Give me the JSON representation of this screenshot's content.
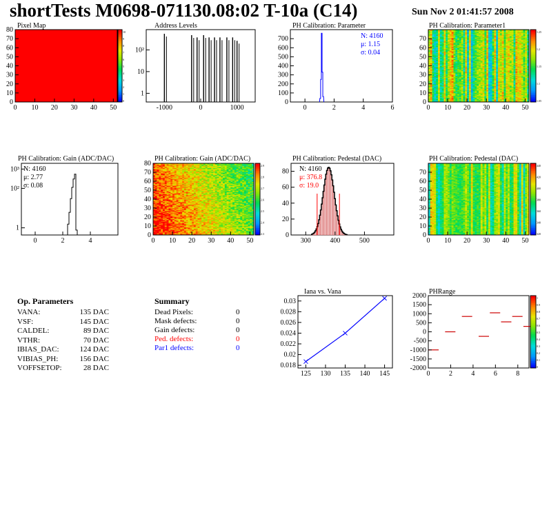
{
  "header": {
    "title": "shortTests M0698-071130.08:02 T-10a (C14)",
    "datetime": "Sun Nov  2 01:41:57 2008"
  },
  "panels": {
    "pixel_map": {
      "title": "Pixel Map",
      "xticks": [
        "0",
        "10",
        "20",
        "30",
        "40",
        "50"
      ],
      "yticks": [
        "0",
        "10",
        "20",
        "30",
        "40",
        "50",
        "60",
        "70",
        "80"
      ],
      "zticks": [
        "0",
        "1",
        "2",
        "3",
        "4",
        "5",
        "6",
        "7",
        "8",
        "9",
        "10"
      ]
    },
    "address_levels": {
      "title": "Address Levels",
      "xticks": [
        "-1000",
        "0",
        "1000"
      ],
      "yticks": [
        "1",
        "10",
        "10²"
      ]
    },
    "ph_param": {
      "title": "PH Calibration: Parameter",
      "xticks": [
        "0",
        "2",
        "4",
        "6"
      ],
      "yticks": [
        "0",
        "100",
        "200",
        "300",
        "400",
        "500",
        "600",
        "700"
      ],
      "stats": {
        "n": "N: 4160",
        "mu": "μ: 1.15",
        "sigma": "σ: 0.04"
      }
    },
    "ph_param1": {
      "title": "PH Calibration: Parameter1",
      "xticks": [
        "0",
        "10",
        "20",
        "30",
        "40",
        "50"
      ],
      "yticks": [
        "0",
        "10",
        "20",
        "30",
        "40",
        "50",
        "60",
        "70"
      ],
      "zticks": [
        "1.05",
        "1.1",
        "1.15",
        "1.2",
        "1.25"
      ]
    },
    "gain_hist": {
      "title": "PH Calibration: Gain (ADC/DAC)",
      "xticks": [
        "0",
        "2",
        "4"
      ],
      "yticks": [
        "1",
        "10²",
        "10³"
      ],
      "stats": {
        "n": "N: 4160",
        "mu": "μ: 2.77",
        "sigma": "σ: 0.08"
      }
    },
    "gain_map": {
      "title": "PH Calibration: Gain (ADC/DAC)",
      "xticks": [
        "0",
        "10",
        "20",
        "30",
        "40",
        "50"
      ],
      "yticks": [
        "0",
        "10",
        "20",
        "30",
        "40",
        "50",
        "60",
        "70",
        "80"
      ],
      "zticks": [
        "2.3",
        "2.4",
        "2.5",
        "2.6",
        "2.7",
        "2.8",
        "2.9"
      ]
    },
    "ped_hist": {
      "title": "PH Calibration: Pedestal (DAC)",
      "xticks": [
        "300",
        "400",
        "500"
      ],
      "yticks": [
        "0",
        "20",
        "40",
        "60",
        "80"
      ],
      "stats": {
        "n": "N: 4160",
        "mu": "μ: 376.8",
        "sigma": "σ: 19.0"
      }
    },
    "ped_map": {
      "title": "PH Calibration: Pedestal (DAC)",
      "xticks": [
        "0",
        "10",
        "20",
        "30",
        "40",
        "50"
      ],
      "yticks": [
        "0",
        "10",
        "20",
        "30",
        "40",
        "50",
        "60",
        "70"
      ],
      "zticks": [
        "320",
        "340",
        "360",
        "380",
        "400",
        "420",
        "440"
      ]
    },
    "iana": {
      "title": "Iana vs. Vana",
      "xticks": [
        "125",
        "130",
        "135",
        "140",
        "145"
      ],
      "yticks": [
        "0.018",
        "0.02",
        "0.022",
        "0.024",
        "0.026",
        "0.028",
        "0.03"
      ]
    },
    "phrange": {
      "title": "PHRange",
      "xticks": [
        "0",
        "2",
        "4",
        "6",
        "8"
      ],
      "yticks": [
        "-2000",
        "-1500",
        "-1000",
        "-500",
        "0",
        "500",
        "1000",
        "1500",
        "2000"
      ],
      "zticks": [
        "0",
        "0.1",
        "0.2",
        "0.3",
        "0.4",
        "0.5",
        "0.6",
        "0.7",
        "0.8",
        "0.9",
        "1"
      ]
    }
  },
  "op_params": {
    "title": "Op. Parameters",
    "rows": [
      {
        "name": "VANA:",
        "value": "135 DAC"
      },
      {
        "name": "VSF:",
        "value": "145 DAC"
      },
      {
        "name": "CALDEL:",
        "value": "89 DAC"
      },
      {
        "name": "VTHR:",
        "value": "70 DAC"
      },
      {
        "name": "IBIAS_DAC:",
        "value": "124 DAC"
      },
      {
        "name": "VIBIAS_PH:",
        "value": "156 DAC"
      },
      {
        "name": "VOFFSETOP:",
        "value": "28 DAC"
      }
    ]
  },
  "summary": {
    "title": "Summary",
    "rows": [
      {
        "name": "Dead Pixels:",
        "value": "0",
        "color": "#000000"
      },
      {
        "name": "Mask defects:",
        "value": "0",
        "color": "#000000"
      },
      {
        "name": "Gain defects:",
        "value": "0",
        "color": "#000000"
      },
      {
        "name": "Ped. defects:",
        "value": "0",
        "color": "#ff0000"
      },
      {
        "name": "Par1 defects:",
        "value": "0",
        "color": "#0000ff"
      }
    ]
  },
  "chart_data": [
    {
      "type": "heatmap",
      "title": "Pixel Map",
      "xlim": [
        0,
        52
      ],
      "ylim": [
        0,
        80
      ],
      "zlim": [
        0,
        10
      ],
      "uniform_value": 10
    },
    {
      "type": "bar",
      "title": "Address Levels",
      "xlim": [
        -1500,
        1500
      ],
      "ylog": true,
      "peaks_x": [
        -1000,
        -250,
        -100,
        80,
        230,
        380,
        530,
        720,
        880,
        1000
      ],
      "peaks_y": [
        400,
        350,
        280,
        350,
        280,
        280,
        280,
        280,
        280,
        200
      ]
    },
    {
      "type": "bar",
      "title": "PH Calibration: Parameter",
      "xlim": [
        -1,
        6
      ],
      "ylim": [
        0,
        800
      ],
      "x": [
        1.05,
        1.1,
        1.15,
        1.2,
        1.25
      ],
      "values": [
        40,
        250,
        760,
        330,
        60
      ]
    },
    {
      "type": "heatmap",
      "title": "PH Calibration: Parameter1",
      "xlim": [
        0,
        52
      ],
      "ylim": [
        0,
        80
      ],
      "zlim": [
        1.0,
        1.3
      ]
    },
    {
      "type": "bar",
      "title": "PH Calibration: Gain (ADC/DAC)",
      "xlim": [
        -1,
        6
      ],
      "ylog": true,
      "x": [
        2.4,
        2.5,
        2.6,
        2.7,
        2.8,
        2.9,
        3.0
      ],
      "values": [
        2,
        8,
        40,
        150,
        400,
        700,
        1
      ]
    },
    {
      "type": "heatmap",
      "title": "PH Calibration: Gain (ADC/DAC)",
      "xlim": [
        0,
        52
      ],
      "ylim": [
        0,
        80
      ],
      "zlim": [
        2.3,
        2.95
      ]
    },
    {
      "type": "bar",
      "title": "PH Calibration: Pedestal (DAC)",
      "xlim": [
        250,
        600
      ],
      "ylim": [
        0,
        90
      ],
      "mean": 376.8,
      "sigma": 19.0,
      "peak": 85
    },
    {
      "type": "heatmap",
      "title": "PH Calibration: Pedestal (DAC)",
      "xlim": [
        0,
        52
      ],
      "ylim": [
        0,
        80
      ],
      "zlim": [
        310,
        450
      ]
    },
    {
      "type": "line",
      "title": "Iana vs. Vana",
      "x": [
        125,
        135,
        145
      ],
      "y": [
        0.0187,
        0.024,
        0.0305
      ],
      "xlim": [
        123,
        147
      ],
      "ylim": [
        0.0175,
        0.031
      ]
    },
    {
      "type": "scatter",
      "title": "PHRange",
      "xlim": [
        0,
        9
      ],
      "ylim": [
        -2000,
        2000
      ],
      "x": [
        0,
        1.5,
        3,
        4.5,
        5.5,
        6.5,
        7.5,
        8.5
      ],
      "y": [
        -1000,
        0,
        850,
        -250,
        1050,
        550,
        850,
        300
      ]
    }
  ]
}
